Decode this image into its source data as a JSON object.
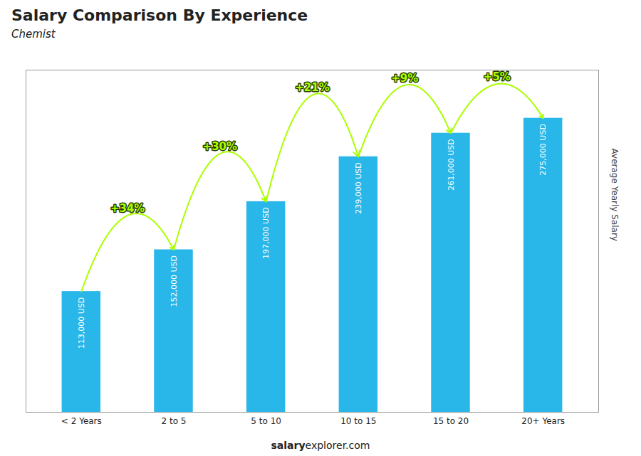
{
  "chart_data": {
    "type": "bar",
    "title": "Salary Comparison By Experience",
    "subtitle": "Chemist",
    "ylabel": "Average Yearly Salary",
    "categories": [
      "< 2 Years",
      "2 to 5",
      "5 to 10",
      "10 to 15",
      "15 to 20",
      "20+ Years"
    ],
    "values": [
      113000,
      152000,
      197000,
      239000,
      261000,
      275000
    ],
    "value_labels": [
      "113,000 USD",
      "152,000 USD",
      "197,000 USD",
      "239,000 USD",
      "261,000 USD",
      "275,000 USD"
    ],
    "data_labels": true,
    "color": "#29b6e8",
    "ylim": [
      0,
      320000
    ],
    "tick_labels": "x",
    "annotations": [
      {
        "text": "+34%",
        "from": "< 2 Years",
        "to": "2 to 5",
        "color": "#aaff00"
      },
      {
        "text": "+30%",
        "from": "2 to 5",
        "to": "5 to 10",
        "color": "#aaff00"
      },
      {
        "text": "+21%",
        "from": "5 to 10",
        "to": "10 to 15",
        "color": "#aaff00"
      },
      {
        "text": "+9%",
        "from": "10 to 15",
        "to": "15 to 20",
        "color": "#aaff00"
      },
      {
        "text": "+5%",
        "from": "15 to 20",
        "to": "20+ Years",
        "color": "#aaff00"
      }
    ],
    "footer": [
      "salary",
      "explorer.com"
    ]
  }
}
